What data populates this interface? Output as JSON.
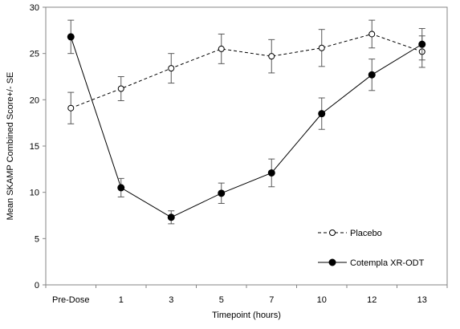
{
  "chart_data": {
    "type": "line",
    "xlabel": "Timepoint (hours)",
    "ylabel": "Mean SKAMP Combined Score+/- SE",
    "categories": [
      "Pre-Dose",
      "1",
      "3",
      "5",
      "7",
      "10",
      "12",
      "13"
    ],
    "ylim": [
      0,
      30
    ],
    "yticks": [
      0,
      5,
      10,
      15,
      20,
      25,
      30
    ],
    "grid": false,
    "legend_position": "bottom-right",
    "series": [
      {
        "name": "Placebo",
        "marker": "open-circle",
        "line_style": "dashed",
        "color": "#000000",
        "values": [
          19.1,
          21.2,
          23.4,
          25.5,
          24.7,
          25.6,
          27.1,
          25.2
        ],
        "error": [
          1.7,
          1.3,
          1.6,
          1.6,
          1.8,
          2.0,
          1.5,
          1.7
        ]
      },
      {
        "name": "Cotempla XR-ODT",
        "marker": "filled-circle",
        "line_style": "solid",
        "color": "#000000",
        "values": [
          26.8,
          10.5,
          7.3,
          9.9,
          12.1,
          18.5,
          22.7,
          26.0
        ],
        "error": [
          1.8,
          1.0,
          0.7,
          1.1,
          1.5,
          1.7,
          1.7,
          1.7
        ]
      }
    ]
  }
}
